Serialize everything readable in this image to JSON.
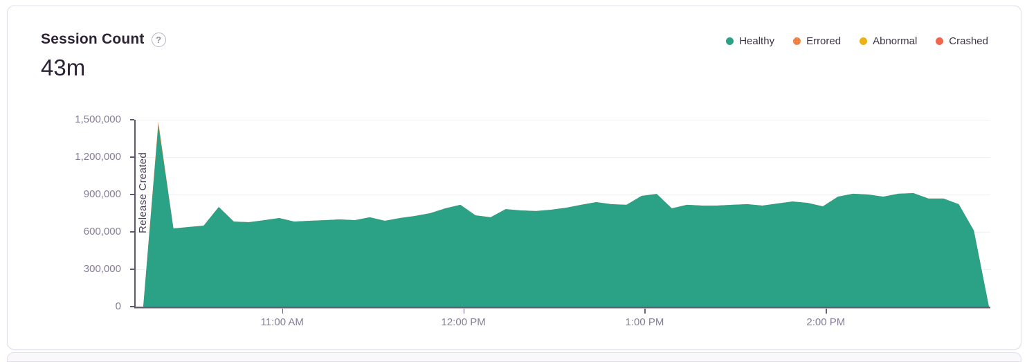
{
  "card": {
    "title": "Session Count",
    "help_icon": "?",
    "total_label": "43m"
  },
  "legend": {
    "items": [
      {
        "label": "Healthy",
        "color": "#2BA185",
        "pattern": "solid"
      },
      {
        "label": "Errored",
        "color": "#EF7D3C",
        "pattern": "dotted"
      },
      {
        "label": "Abnormal",
        "color": "#EFB014",
        "pattern": "solid"
      },
      {
        "label": "Crashed",
        "color": "#F2654D",
        "pattern": "solid"
      }
    ]
  },
  "chart_data": {
    "type": "area",
    "stacked": true,
    "title": "Session Count",
    "x_start": "10:14 AM",
    "x_interval_minutes": 5,
    "ylim": [
      0,
      1500000
    ],
    "grid": "horizontal",
    "legend_position": "top-right",
    "y_ticks": {
      "values": [
        0,
        300000,
        600000,
        900000,
        1200000,
        1500000
      ],
      "labels": [
        "0",
        "300,000",
        "600,000",
        "900,000",
        "1,200,000",
        "1,500,000"
      ]
    },
    "x_ticks": [
      {
        "label": "11:00 AM",
        "index": 9.2
      },
      {
        "label": "12:00 PM",
        "index": 21.2
      },
      {
        "label": "1:00 PM",
        "index": 33.2
      },
      {
        "label": "2:00 PM",
        "index": 45.2
      }
    ],
    "annotation": {
      "type": "vertical-line-label",
      "label": "Release Created"
    },
    "series": [
      {
        "name": "Healthy",
        "color": "#2BA185",
        "values": [
          0,
          1455000,
          628000,
          639000,
          650000,
          800000,
          683000,
          678000,
          694000,
          711000,
          683000,
          689000,
          694000,
          700000,
          694000,
          717000,
          689000,
          711000,
          728000,
          750000,
          789000,
          817000,
          733000,
          717000,
          783000,
          772000,
          767000,
          778000,
          794000,
          817000,
          839000,
          822000,
          817000,
          889000,
          905000,
          789000,
          817000,
          811000,
          811000,
          817000,
          822000,
          811000,
          828000,
          844000,
          833000,
          805000,
          883000,
          906000,
          900000,
          883000,
          906000,
          911000,
          867000,
          867000,
          822000,
          611000,
          0
        ]
      },
      {
        "name": "Errored",
        "color": "#EF7D3C",
        "values": [
          0,
          28000,
          0,
          0,
          0,
          0,
          0,
          0,
          0,
          0,
          0,
          0,
          0,
          0,
          0,
          0,
          0,
          0,
          0,
          0,
          0,
          0,
          0,
          0,
          0,
          0,
          0,
          0,
          0,
          0,
          0,
          0,
          0,
          0,
          0,
          0,
          0,
          0,
          0,
          0,
          0,
          0,
          0,
          0,
          0,
          0,
          0,
          0,
          0,
          0,
          0,
          0,
          0,
          0,
          0,
          0,
          0
        ]
      }
    ]
  }
}
